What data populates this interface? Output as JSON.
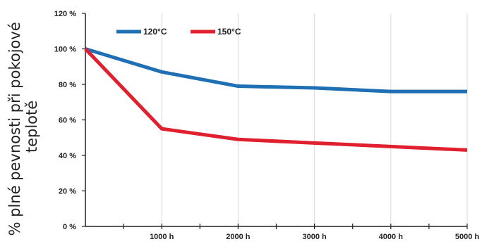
{
  "chart_data": {
    "type": "line",
    "title": "",
    "xlabel": "",
    "ylabel": "% plné pevnosti při pokojové teplotě",
    "ylabel_lines": [
      "% plné pevnosti při pokojové",
      "teplotě"
    ],
    "x": [
      0,
      1000,
      2000,
      3000,
      4000,
      5000
    ],
    "xlim": [
      0,
      5000
    ],
    "ylim": [
      0,
      120
    ],
    "x_ticks": [
      1000,
      2000,
      3000,
      4000,
      5000
    ],
    "x_tick_labels": [
      "1000 h",
      "2000 h",
      "3000 h",
      "4000 h",
      "5000 h"
    ],
    "y_ticks": [
      0,
      20,
      40,
      60,
      80,
      100,
      120
    ],
    "y_tick_labels": [
      "0 %",
      "20 %",
      "40 %",
      "60 %",
      "80 %",
      "100 %",
      "120 %"
    ],
    "grid": "vertical",
    "legend_position": "top-left",
    "series": [
      {
        "name": "120°C",
        "color": "#1f6fb5",
        "values": [
          100,
          87,
          79,
          78,
          76,
          76
        ]
      },
      {
        "name": "150°C",
        "color": "#e0202e",
        "values": [
          100,
          55,
          49,
          47,
          45,
          43
        ]
      }
    ]
  }
}
